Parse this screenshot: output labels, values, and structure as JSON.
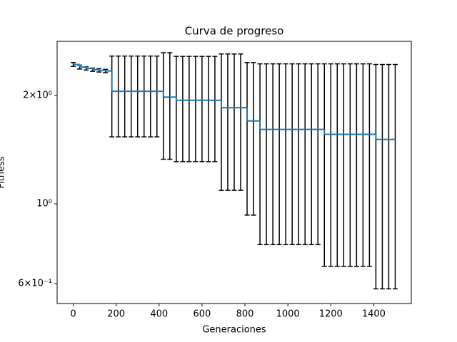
{
  "chart_data": {
    "type": "errorbar",
    "title": "Curva de progreso",
    "x_label": "Generaciones",
    "y_label": "Fitness",
    "y_scale": "log",
    "drawstyle": "steps-post",
    "color": "#1f77b4",
    "error_color": "#000000",
    "x": [
      0,
      30,
      60,
      90,
      120,
      150,
      180,
      210,
      240,
      270,
      300,
      330,
      360,
      390,
      420,
      450,
      480,
      510,
      540,
      570,
      600,
      630,
      660,
      690,
      720,
      750,
      780,
      810,
      840,
      870,
      900,
      930,
      960,
      990,
      1020,
      1050,
      1080,
      1110,
      1140,
      1170,
      1200,
      1230,
      1260,
      1290,
      1320,
      1350,
      1380,
      1410,
      1440,
      1470,
      1500
    ],
    "values": [
      2.44,
      2.4,
      2.38,
      2.36,
      2.35,
      2.34,
      2.055,
      2.055,
      2.055,
      2.055,
      2.055,
      2.055,
      2.055,
      2.055,
      1.98,
      1.98,
      1.94,
      1.94,
      1.94,
      1.94,
      1.94,
      1.94,
      1.94,
      1.85,
      1.85,
      1.85,
      1.85,
      1.7,
      1.7,
      1.61,
      1.61,
      1.61,
      1.61,
      1.61,
      1.61,
      1.61,
      1.61,
      1.61,
      1.61,
      1.56,
      1.56,
      1.56,
      1.56,
      1.56,
      1.56,
      1.56,
      1.56,
      1.51,
      1.51,
      1.51,
      1.51
    ],
    "errors": [
      0.03,
      0.03,
      0.025,
      0.025,
      0.025,
      0.025,
      0.52,
      0.52,
      0.52,
      0.52,
      0.52,
      0.52,
      0.52,
      0.52,
      0.65,
      0.65,
      0.63,
      0.63,
      0.63,
      0.63,
      0.63,
      0.63,
      0.63,
      0.76,
      0.76,
      0.76,
      0.76,
      0.77,
      0.77,
      0.84,
      0.84,
      0.84,
      0.84,
      0.84,
      0.84,
      0.84,
      0.84,
      0.84,
      0.84,
      0.89,
      0.89,
      0.89,
      0.89,
      0.89,
      0.89,
      0.89,
      0.89,
      0.93,
      0.93,
      0.93,
      0.93
    ],
    "xlim": [
      -75,
      1575
    ],
    "xticks": [
      0,
      200,
      400,
      600,
      800,
      1000,
      1200,
      1400
    ],
    "ylim": [
      0.528,
      2.83
    ],
    "yticks": [
      {
        "value": 0.6,
        "label": "6×10⁻¹"
      },
      {
        "value": 1,
        "label": "10⁰"
      },
      {
        "value": 2,
        "label": "2×10⁰"
      }
    ]
  }
}
